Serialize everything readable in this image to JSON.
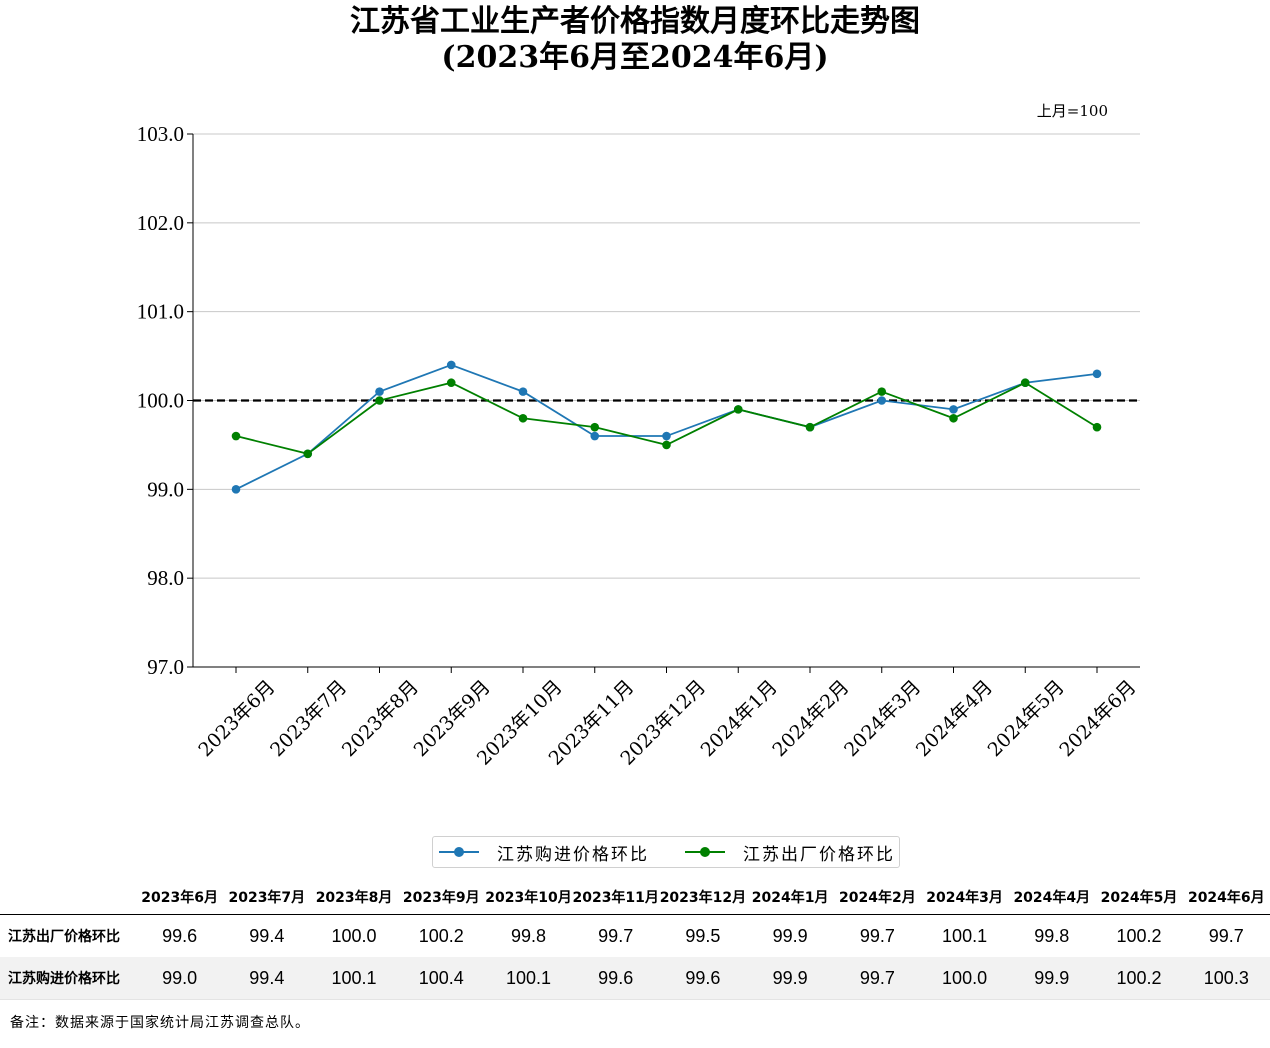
{
  "chart_data": {
    "type": "line",
    "title": "江苏省工业生产者价格指数月度环比走势图",
    "subtitle": "(2023年6月至2024年6月)",
    "unit_note": "上月=100",
    "categories": [
      "2023年6月",
      "2023年7月",
      "2023年8月",
      "2023年9月",
      "2023年10月",
      "2023年11月",
      "2023年12月",
      "2024年1月",
      "2024年2月",
      "2024年3月",
      "2024年4月",
      "2024年5月",
      "2024年6月"
    ],
    "ylim": [
      97.0,
      103.0
    ],
    "yticks": [
      "97.0",
      "98.0",
      "99.0",
      "100.0",
      "101.0",
      "102.0",
      "103.0"
    ],
    "reference_line": 100.0,
    "grid": "horizontal",
    "legend_position": "below",
    "series": [
      {
        "name": "江苏购进价格环比",
        "color": "#1f77b4",
        "values": [
          99.0,
          99.4,
          100.1,
          100.4,
          100.1,
          99.6,
          99.6,
          99.9,
          99.7,
          100.0,
          99.9,
          100.2,
          100.3
        ]
      },
      {
        "name": "江苏出厂价格环比",
        "color": "#008000",
        "values": [
          99.6,
          99.4,
          100.0,
          100.2,
          99.8,
          99.7,
          99.5,
          99.9,
          99.7,
          100.1,
          99.8,
          100.2,
          99.7
        ]
      }
    ]
  },
  "table": {
    "header": [
      "2023年6月",
      "2023年7月",
      "2023年8月",
      "2023年9月",
      "2023年10月",
      "2023年11月",
      "2023年12月",
      "2024年1月",
      "2024年2月",
      "2024年3月",
      "2024年4月",
      "2024年5月",
      "2024年6月"
    ],
    "rows": [
      {
        "label": "江苏出厂价格环比",
        "values": [
          "99.6",
          "99.4",
          "100.0",
          "100.2",
          "99.8",
          "99.7",
          "99.5",
          "99.9",
          "99.7",
          "100.1",
          "99.8",
          "100.2",
          "99.7"
        ]
      },
      {
        "label": "江苏购进价格环比",
        "values": [
          "99.0",
          "99.4",
          "100.1",
          "100.4",
          "100.1",
          "99.6",
          "99.6",
          "99.9",
          "99.7",
          "100.0",
          "99.9",
          "100.2",
          "100.3"
        ]
      }
    ]
  },
  "footnote": "备注：数据来源于国家统计局江苏调查总队。"
}
